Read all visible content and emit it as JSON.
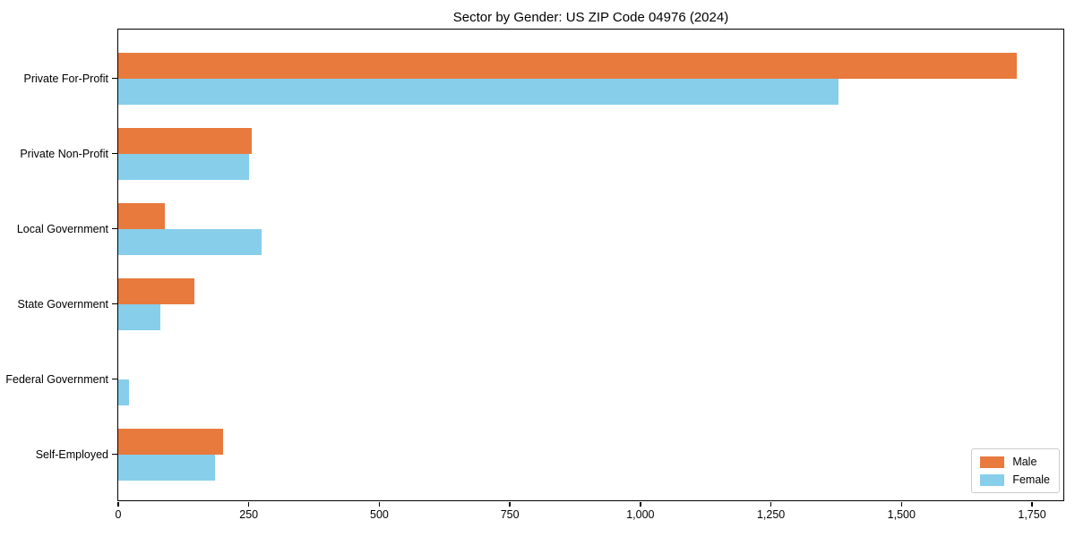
{
  "chart_data": {
    "type": "bar",
    "orientation": "horizontal",
    "title": "Sector by Gender: US ZIP Code 04976 (2024)",
    "categories": [
      "Private For-Profit",
      "Private Non-Profit",
      "Local Government",
      "State Government",
      "Federal Government",
      "Self-Employed"
    ],
    "series": [
      {
        "name": "Male",
        "color": "#E87A3D",
        "values": [
          1720,
          255,
          90,
          145,
          0,
          200
        ]
      },
      {
        "name": "Female",
        "color": "#87CEEB",
        "values": [
          1380,
          250,
          275,
          80,
          20,
          185
        ]
      }
    ],
    "xlabel": "",
    "ylabel": "",
    "xlim": [
      0,
      1810
    ],
    "xticks": [
      0,
      250,
      500,
      750,
      1000,
      1250,
      1500,
      1750
    ],
    "xtick_labels": [
      "0",
      "250",
      "500",
      "750",
      "1,000",
      "1,250",
      "1,500",
      "1,750"
    ],
    "grid": false,
    "legend_position": "lower right"
  },
  "colors": {
    "male": "#E87A3D",
    "female": "#87CEEB",
    "spine": "#000000",
    "legend_border": "#cccccc",
    "background": "#ffffff"
  }
}
